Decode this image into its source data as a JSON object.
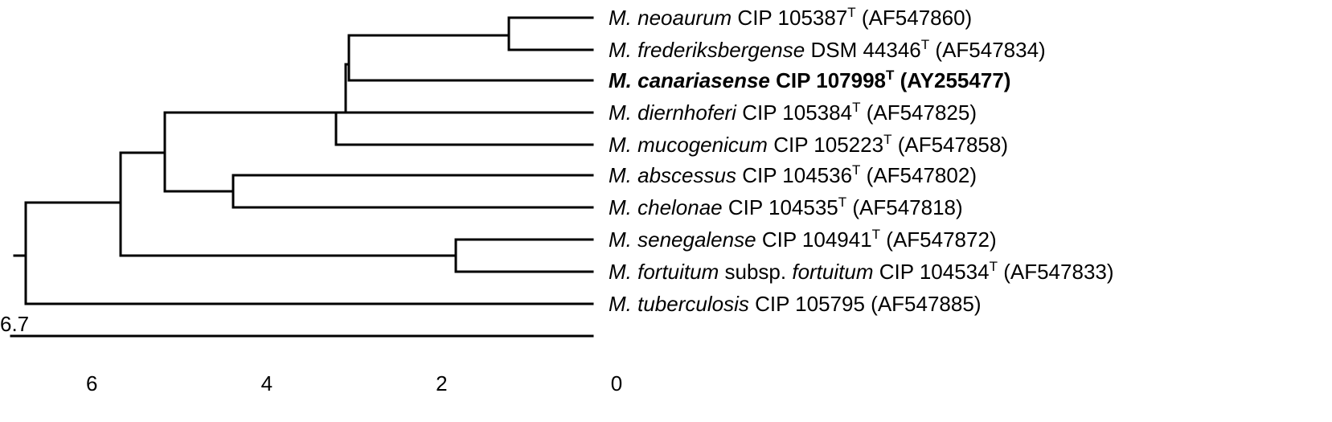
{
  "figure": {
    "type": "phylogenetic-tree",
    "scale_bar_label": "6.7",
    "axis": {
      "range": [
        6.7,
        0
      ],
      "ticks": [
        {
          "value": 6,
          "label": "6"
        },
        {
          "value": 4,
          "label": "4"
        },
        {
          "value": 2,
          "label": "2"
        },
        {
          "value": 0,
          "label": "0"
        }
      ]
    },
    "taxa": [
      {
        "genus": "M.",
        "species": "neoaurum",
        "strain": "CIP 105387",
        "type_strain": true,
        "accession": "(AF547860)",
        "highlight": false
      },
      {
        "genus": "M.",
        "species": "frederiksbergense",
        "strain": "DSM 44346",
        "type_strain": true,
        "accession": "(AF547834)",
        "highlight": false
      },
      {
        "genus": "M.",
        "species": "canariasense",
        "strain": "CIP 107998",
        "type_strain": true,
        "accession": "(AY255477)",
        "highlight": true
      },
      {
        "genus": "M.",
        "species": "diernhoferi",
        "strain": "CIP 105384",
        "type_strain": true,
        "accession": "(AF547825)",
        "highlight": false
      },
      {
        "genus": "M.",
        "species": "mucogenicum",
        "strain": "CIP 105223",
        "type_strain": true,
        "accession": "(AF547858)",
        "highlight": false
      },
      {
        "genus": "M.",
        "species": "abscessus",
        "strain": "CIP 104536",
        "type_strain": true,
        "accession": "(AF547802)",
        "highlight": false
      },
      {
        "genus": "M.",
        "species": "chelonae",
        "strain": "CIP 104535",
        "type_strain": true,
        "accession": "(AF547818)",
        "highlight": false
      },
      {
        "genus": "M.",
        "species": "senegalense",
        "strain": "CIP 104941",
        "type_strain": true,
        "accession": "(AF547872)",
        "highlight": false
      },
      {
        "genus": "M.",
        "species": "fortuitum",
        "subspecies_word": "subsp.",
        "subspecies": "fortuitum",
        "strain": "CIP 104534",
        "type_strain": true,
        "accession": "(AF547833)",
        "highlight": false
      },
      {
        "genus": "M.",
        "species": "tuberculosis",
        "strain": "CIP 105795",
        "type_strain": false,
        "accession": "(AF547885)",
        "highlight": false
      }
    ],
    "type_mark": "T"
  }
}
